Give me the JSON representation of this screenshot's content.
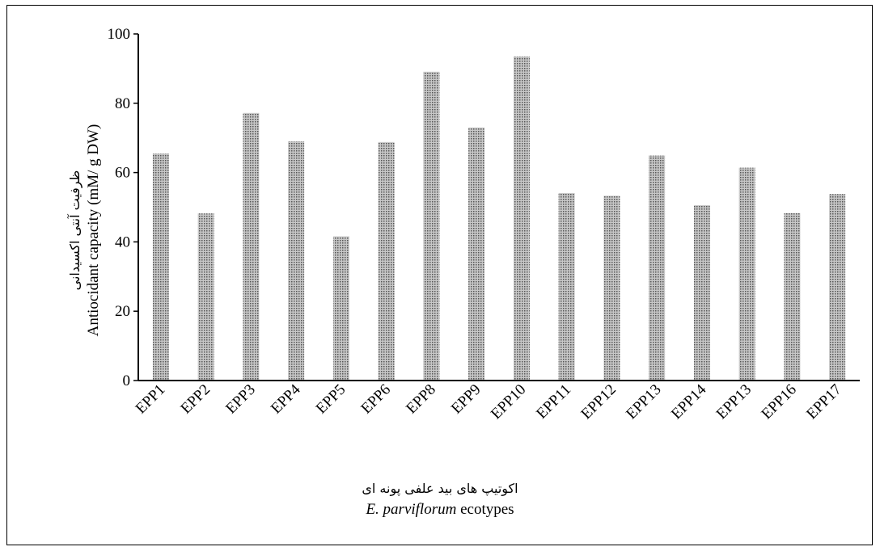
{
  "chart_data": {
    "type": "bar",
    "categories": [
      "EPP1",
      "EPP2",
      "EPP3",
      "EPP4",
      "EPP5",
      "EPP6",
      "EPP8",
      "EPP9",
      "EPP10",
      "EPP11",
      "EPP12",
      "EPP13",
      "EPP14",
      "EPP13",
      "EPP16",
      "EPP17"
    ],
    "values": [
      65.5,
      48.2,
      77.2,
      69.0,
      41.6,
      68.8,
      89.1,
      73.0,
      93.5,
      54.1,
      53.3,
      64.9,
      50.6,
      61.4,
      48.3,
      53.8
    ],
    "ylim": [
      0,
      100
    ],
    "yticks": [
      0,
      20,
      40,
      60,
      80,
      100
    ],
    "ylabel_fa": "ظرفیت آنتی اکسیدانی",
    "ylabel_en": "Antiocidant capacity (mM/ g DW)",
    "xlabel_fa": "اکوتیپ های بید علفی پونه ای",
    "xlabel_en_italic": "E. parviflorum",
    "xlabel_en_rest": " ecotypes",
    "grid": false,
    "bar_color": "#bdbdbd",
    "bar_pattern_color": "#4a4a4a"
  }
}
